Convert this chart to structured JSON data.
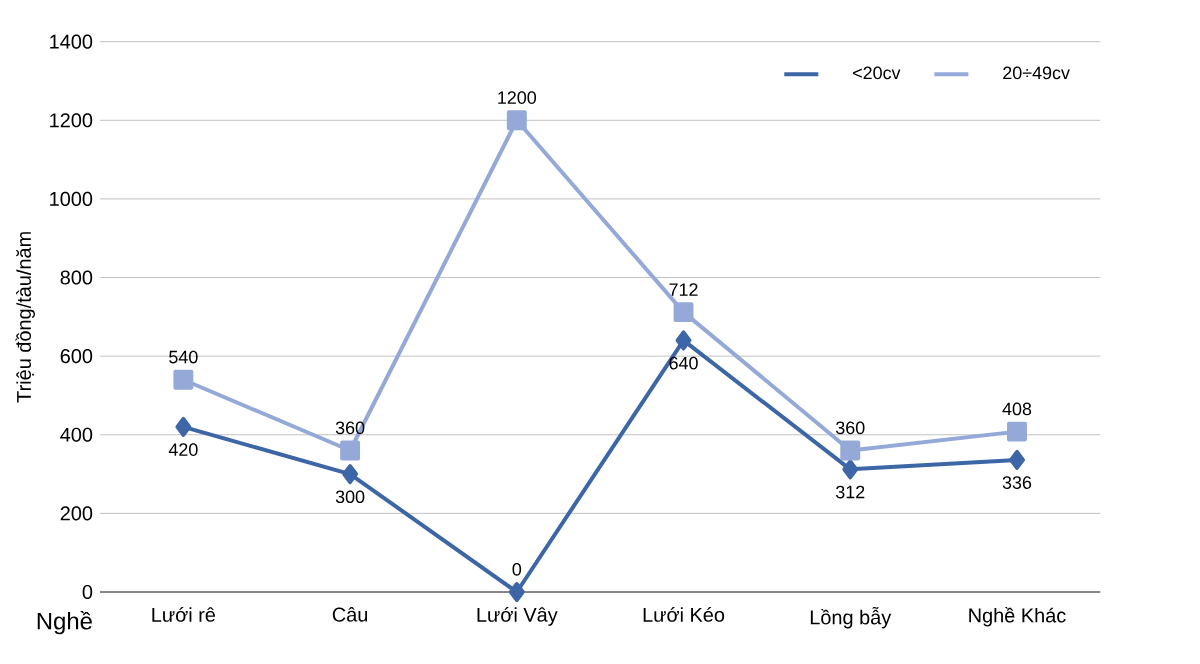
{
  "chart_data": {
    "type": "line",
    "xlabel": "Nghề",
    "ylabel": "Triệu đồng/tàu/năm",
    "categories": [
      "Lưới rê",
      "Câu",
      "Lưới Vây",
      "Lưới Kéo",
      "Lồng bẫy",
      "Nghề Khác"
    ],
    "series": [
      {
        "name": "<20cv",
        "color": "#3d66a6",
        "marker": "diamond",
        "values": [
          420,
          300,
          0,
          640,
          312,
          336
        ]
      },
      {
        "name": "20÷49cv",
        "color": "#95a9d8",
        "marker": "square",
        "values": [
          540,
          360,
          1200,
          712,
          360,
          408
        ]
      }
    ],
    "ylim": [
      0,
      1400
    ],
    "yticks": [
      0,
      200,
      400,
      600,
      800,
      1000,
      1200,
      1400
    ],
    "grid": "y",
    "legend": "top right",
    "data_labels": true,
    "line_style": "solid"
  }
}
